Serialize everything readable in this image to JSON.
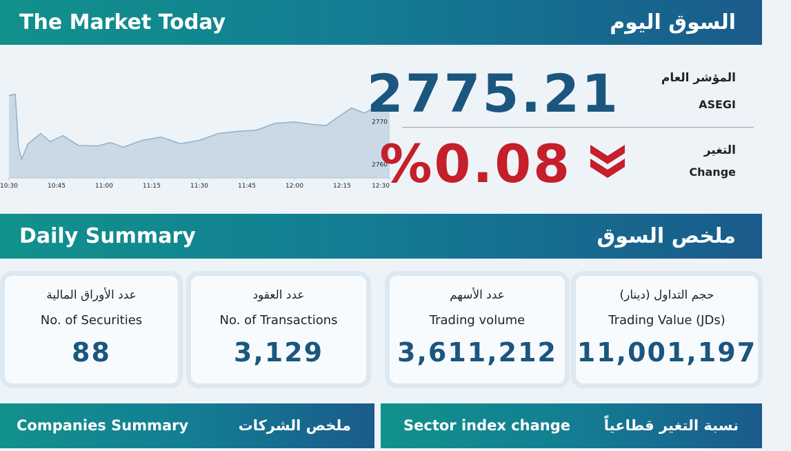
{
  "header": {
    "title_en": "The Market Today",
    "title_ar": "السوق اليوم"
  },
  "index": {
    "label_ar": "المؤشر العام",
    "label_en": "ASEGI",
    "value": "2775.21"
  },
  "change": {
    "label_ar": "التغير",
    "label_en": "Change",
    "value": "%0.08"
  },
  "chart_data": {
    "type": "line",
    "color": "#8fb0c8",
    "fill": "#c9d9e6",
    "x": [
      "10:30",
      "10:32",
      "10:33",
      "10:34",
      "10:36",
      "10:40",
      "10:43",
      "10:47",
      "10:52",
      "10:58",
      "11:02",
      "11:06",
      "11:12",
      "11:18",
      "11:24",
      "11:30",
      "11:36",
      "11:42",
      "11:48",
      "11:54",
      "12:00",
      "12:06",
      "12:10",
      "12:14",
      "12:18",
      "12:22",
      "12:26",
      "12:30"
    ],
    "values": [
      2777.3,
      2777.6,
      2765.2,
      2762.4,
      2766.0,
      2768.4,
      2766.5,
      2767.9,
      2765.6,
      2765.5,
      2766.3,
      2765.2,
      2766.8,
      2767.6,
      2766.0,
      2766.8,
      2768.4,
      2768.9,
      2769.2,
      2770.8,
      2771.1,
      2770.5,
      2770.3,
      2772.4,
      2774.4,
      2773.2,
      2774.8,
      2774.5
    ],
    "xlim": [
      "10:30",
      "12:30"
    ],
    "xticks": [
      "10:30",
      "10:45",
      "11:00",
      "11:15",
      "11:30",
      "11:45",
      "12:00",
      "12:15",
      "12:30"
    ],
    "ylim": [
      2758,
      2779
    ],
    "yticks": [
      2760,
      2770
    ]
  },
  "summary": {
    "title_en": "Daily Summary",
    "title_ar": "ملخص السوق",
    "cards": [
      {
        "label_ar": "عدد الأوراق المالية",
        "label_en": "No. of Securities",
        "value": "88"
      },
      {
        "label_ar": "عدد العقود",
        "label_en": "No. of Transactions",
        "value": "3,129"
      },
      {
        "label_ar": "عدد الأسهم",
        "label_en": "Trading volume",
        "value": "3,611,212"
      },
      {
        "label_ar": "حجم التداول (دينار)",
        "label_en": "Trading Value (JDs)",
        "value": "11,001,197"
      }
    ]
  },
  "companies": {
    "title_en": "Companies Summary",
    "title_ar": "ملخص الشركات"
  },
  "sectors": {
    "title_en": "Sector index change",
    "title_ar": "نسبة التغير قطاعياً"
  }
}
